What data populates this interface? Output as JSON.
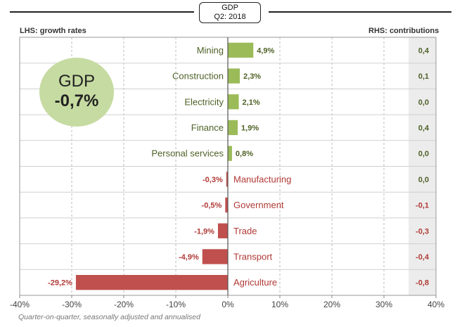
{
  "header": {
    "title_line1": "GDP",
    "title_line2": "Q2: 2018",
    "lhs_label": "LHS: growth rates",
    "rhs_label": "RHS: contributions"
  },
  "gdp_badge": {
    "label": "GDP",
    "value": "-0,7%"
  },
  "footnote": "Quarter-on-quarter, seasonally adjusted and annualised",
  "colors": {
    "positive": "#9bbb59",
    "negative": "#c0504d",
    "contrib_bg": "#ececec"
  },
  "chart_data": {
    "type": "bar",
    "orientation": "horizontal",
    "categories": [
      "Mining",
      "Construction",
      "Electricity",
      "Finance",
      "Personal services",
      "Manufacturing",
      "Government",
      "Trade",
      "Transport",
      "Agriculture"
    ],
    "values": [
      4.9,
      2.3,
      2.1,
      1.9,
      0.8,
      -0.3,
      -0.5,
      -1.9,
      -4.9,
      -29.2
    ],
    "value_labels": [
      "4,9%",
      "2,3%",
      "2,1%",
      "1,9%",
      "0,8%",
      "-0,3%",
      "-0,5%",
      "-1,9%",
      "-4,9%",
      "-29,2%"
    ],
    "contributions": [
      0.4,
      0.1,
      0.0,
      0.4,
      0.0,
      0.0,
      -0.1,
      -0.3,
      -0.4,
      -0.8
    ],
    "contribution_labels": [
      "0,4",
      "0,1",
      "0,0",
      "0,4",
      "0,0",
      "0,0",
      "-0,1",
      "-0,3",
      "-0,4",
      "-0,8"
    ],
    "xlim": [
      -40,
      40
    ],
    "xticks": [
      -40,
      -30,
      -20,
      -10,
      0,
      10,
      20,
      30,
      40
    ],
    "xtick_labels": [
      "-40%",
      "-30%",
      "-20%",
      "-10%",
      "0%",
      "10%",
      "20%",
      "30%",
      "40%"
    ],
    "grid": true
  }
}
